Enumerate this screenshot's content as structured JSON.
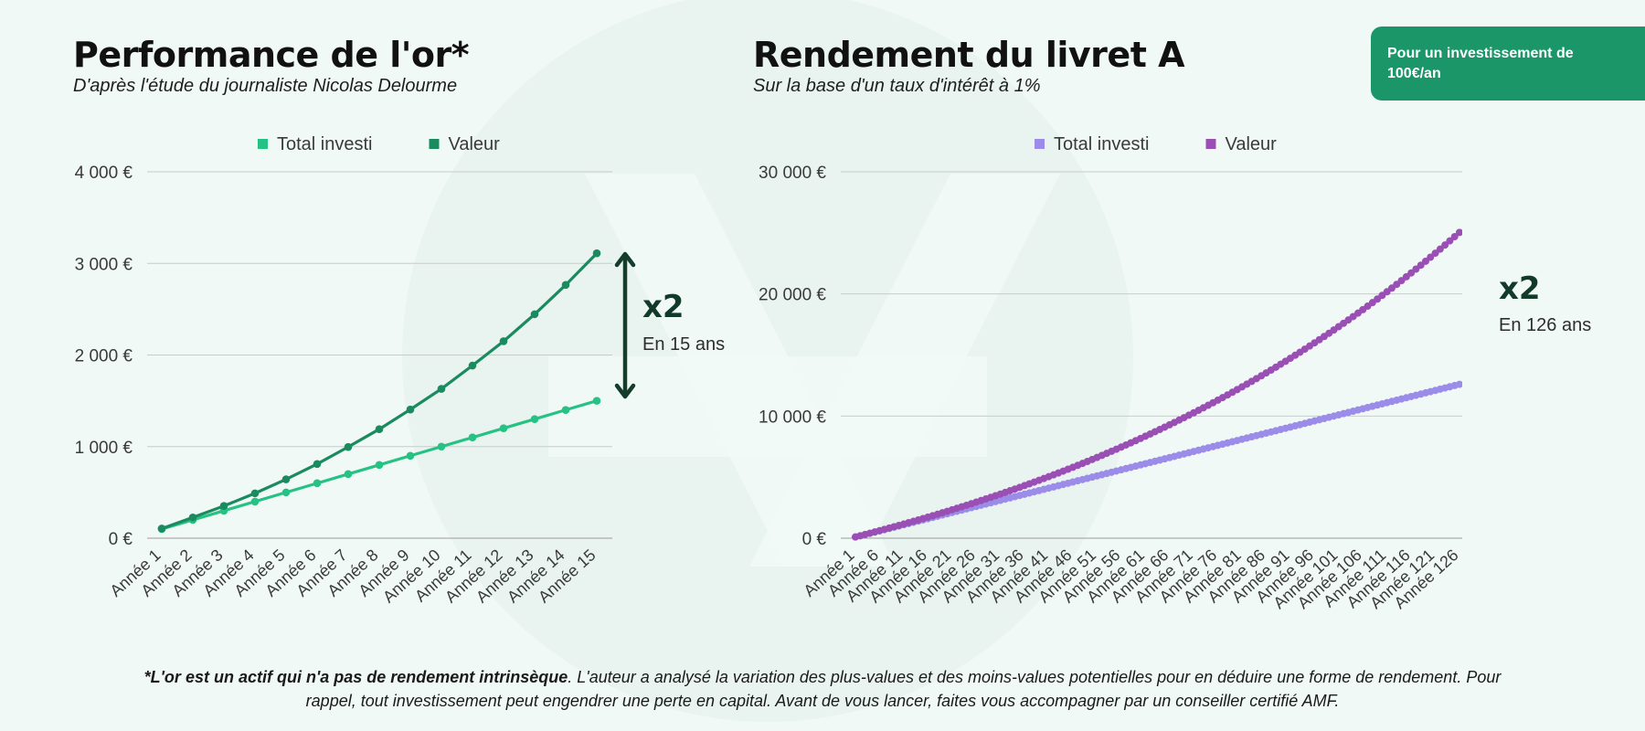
{
  "left": {
    "title": "Performance de l'or*",
    "subtitle": "D'après l'étude du journaliste Nicolas Delourme",
    "annotation_big": "x2",
    "annotation_small": "En 15 ans"
  },
  "right": {
    "title": "Rendement du livret A",
    "subtitle": "Sur la base d'un taux d'intérêt à 1%",
    "annotation_big": "x2",
    "annotation_small": "En 126 ans"
  },
  "badge": {
    "text": "Pour un investissement de 100€/an"
  },
  "footnote": {
    "bold": "*L'or est un actif qui n'a pas de rendement intrinsèque",
    "rest": ". L'auteur a analysé la variation des plus-values et des moins-values potentielles pour en déduire une forme de rendement. Pour rappel, tout investissement peut engendrer une perte en capital. Avant de vous lancer, faites vous accompagner par un conseiller certifié AMF."
  },
  "colors": {
    "gold_invested": "#25c284",
    "gold_value": "#1a8a5f",
    "livret_invested": "#9a8ce8",
    "livret_value": "#9a4fb4",
    "arrow_left": "#143d2c",
    "arrow_right": "#262158",
    "badge_bg": "#1b9669"
  },
  "chart_data": [
    {
      "type": "line",
      "x": [
        "Année 1",
        "Année 2",
        "Année 3",
        "Année 4",
        "Année 5",
        "Année 6",
        "Année 7",
        "Année 8",
        "Année 9",
        "Année 10",
        "Année 11",
        "Année 12",
        "Année 13",
        "Année 14",
        "Année 15"
      ],
      "series": [
        {
          "name": "Total investi",
          "values": [
            100,
            200,
            300,
            400,
            500,
            600,
            700,
            800,
            900,
            1000,
            1100,
            1200,
            1300,
            1400,
            1500
          ]
        },
        {
          "name": "Valeur",
          "values": [
            105,
            227,
            352,
            490,
            643,
            810,
            996,
            1190,
            1405,
            1630,
            1885,
            2150,
            2445,
            2765,
            3110
          ]
        }
      ],
      "ylim": [
        0,
        4000
      ],
      "yticks": [
        0,
        1000,
        2000,
        3000,
        4000
      ],
      "ytick_labels": [
        "0 €",
        "1 000 €",
        "2 000 €",
        "3 000 €",
        "4 000 €"
      ],
      "legend": "top",
      "grid": true
    },
    {
      "type": "line",
      "x_range": [
        1,
        126
      ],
      "x_label_prefix": "Année",
      "x_label_step": 5,
      "series": [
        {
          "name": "Total investi",
          "start": 100,
          "annual_contribution": 100,
          "end_value": 12600
        },
        {
          "name": "Valeur",
          "annual_contribution": 100,
          "interest_rate_percent": 1,
          "end_value": 25270
        }
      ],
      "ylim": [
        0,
        30000
      ],
      "yticks": [
        0,
        10000,
        20000,
        30000
      ],
      "ytick_labels": [
        "0 €",
        "10 000 €",
        "20 000 €",
        "30 000 €"
      ],
      "legend": "top",
      "grid": true
    }
  ]
}
